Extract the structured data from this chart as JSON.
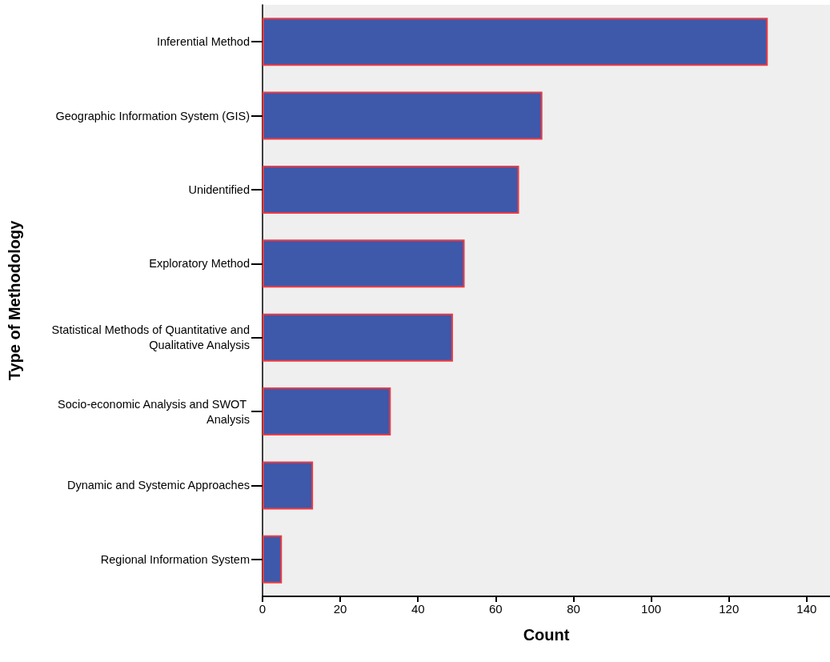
{
  "chart_data": {
    "type": "bar",
    "orientation": "horizontal",
    "xlabel": "Count",
    "ylabel": "Type of Methodology",
    "categories": [
      "Inferential Method",
      "Geographic Information System (GIS)",
      "Unidentified",
      "Exploratory Method",
      "Statistical Methods of Quantitative and Qualitative Analysis",
      "Socio-economic Analysis and SWOT Analysis",
      "Dynamic and Systemic Approaches",
      "Regional Information System"
    ],
    "series": [
      {
        "color": "#3e58aa",
        "values": [
          130,
          72,
          66,
          52,
          49,
          33,
          13,
          5
        ]
      }
    ],
    "xlim": [
      0,
      146
    ],
    "xticks": [
      0,
      20,
      40,
      60,
      80,
      100,
      120,
      140
    ],
    "grid": false
  }
}
